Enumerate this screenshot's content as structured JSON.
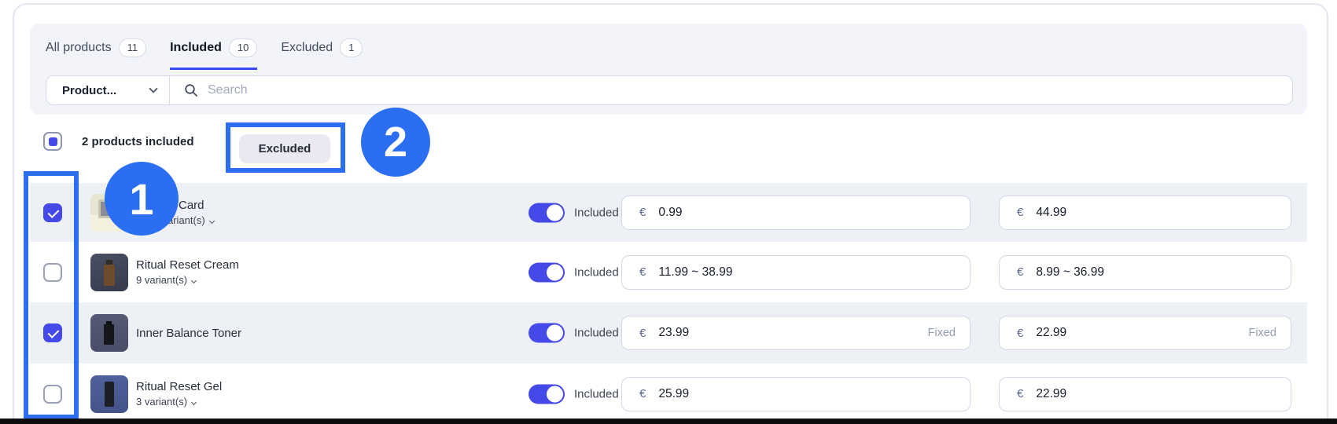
{
  "colors": {
    "accent_indigo": "#4449e7",
    "annotation_blue": "#2b6ef2",
    "row_shade": "#edf0f4",
    "panel_bg": "#f2f4f9",
    "excluded_button_bg": "#eae8f0"
  },
  "tabs": [
    {
      "label": "All products",
      "count": "11"
    },
    {
      "label": "Included",
      "count": "10"
    },
    {
      "label": "Excluded",
      "count": "1"
    }
  ],
  "active_tab": "Included",
  "filter": {
    "selected": "Product..."
  },
  "search": {
    "placeholder": "Search"
  },
  "selection": {
    "summary": "2 products included",
    "excluded_button_label": "Excluded"
  },
  "annotations": [
    {
      "label": "1"
    },
    {
      "label": "2"
    }
  ],
  "currency_symbol": "€",
  "rows": [
    {
      "title": "Card",
      "variants": "ariant(s)",
      "checked": true,
      "shaded": true,
      "toggle_state": "Included",
      "price": "0.99",
      "price_tag": "",
      "compare_price": "44.99",
      "compare_tag": ""
    },
    {
      "title": "Ritual Reset Cream",
      "variants": "9 variant(s)",
      "checked": false,
      "shaded": false,
      "toggle_state": "Included",
      "price": "11.99 ~ 38.99",
      "price_tag": "",
      "compare_price": "8.99 ~ 36.99",
      "compare_tag": ""
    },
    {
      "title": "Inner Balance Toner",
      "variants": "",
      "checked": true,
      "shaded": true,
      "toggle_state": "Included",
      "price": "23.99",
      "price_tag": "Fixed",
      "compare_price": "22.99",
      "compare_tag": "Fixed"
    },
    {
      "title": "Ritual Reset Gel",
      "variants": "3 variant(s)",
      "checked": false,
      "shaded": false,
      "toggle_state": "Included",
      "price": "25.99",
      "price_tag": "",
      "compare_price": "22.99",
      "compare_tag": ""
    }
  ]
}
